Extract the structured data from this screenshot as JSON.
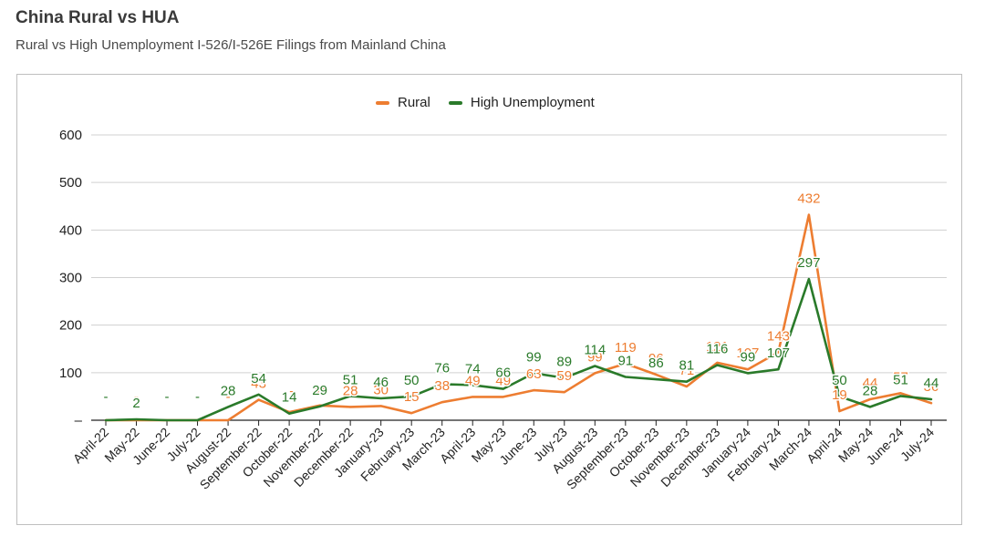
{
  "header": {
    "title": "China Rural vs HUA",
    "subtitle": "Rural vs High Unemployment I-526/I-526E Filings from Mainland China"
  },
  "chart_data": {
    "type": "line",
    "categories": [
      "April-22",
      "May-22",
      "June-22",
      "July-22",
      "August-22",
      "September-22",
      "October-22",
      "November-22",
      "December-22",
      "January-23",
      "February-23",
      "March-23",
      "April-23",
      "May-23",
      "June-23",
      "July-23",
      "August-23",
      "September-23",
      "October-23",
      "November-23",
      "December-23",
      "January-24",
      "February-24",
      "March-24",
      "April-24",
      "May-24",
      "June-24",
      "July-24"
    ],
    "series": [
      {
        "name": "Rural",
        "color": "#ED7D31",
        "values": [
          0,
          0,
          0,
          0,
          0,
          43,
          17,
          31,
          28,
          30,
          15,
          38,
          49,
          49,
          63,
          59,
          99,
          119,
          96,
          71,
          121,
          107,
          143,
          432,
          19,
          44,
          57,
          36
        ],
        "labels": [
          "-",
          "-",
          "-",
          "-",
          "-",
          "43",
          "17",
          "31",
          "28",
          "30",
          "15",
          "38",
          "49",
          "49",
          "63",
          "59",
          "99",
          "119",
          "96",
          "71",
          "121",
          "107",
          "143",
          "432",
          "19",
          "44",
          "57",
          "36"
        ]
      },
      {
        "name": "High Unemployment",
        "color": "#2A7A2A",
        "values": [
          0,
          2,
          0,
          0,
          28,
          54,
          14,
          29,
          51,
          46,
          50,
          76,
          74,
          66,
          99,
          89,
          114,
          91,
          86,
          81,
          116,
          99,
          107,
          297,
          50,
          28,
          51,
          44
        ],
        "labels": [
          "-",
          "2",
          "-",
          "-",
          "28",
          "54",
          "14",
          "29",
          "51",
          "46",
          "50",
          "76",
          "74",
          "66",
          "99",
          "89",
          "114",
          "91",
          "86",
          "81",
          "116",
          "99",
          "107",
          "297",
          "50",
          "28",
          "51",
          "44"
        ]
      }
    ],
    "ylim": [
      0,
      600
    ],
    "yticks": [
      "600",
      "500",
      "400",
      "300",
      "200",
      "100",
      "–"
    ],
    "ytick_values": [
      600,
      500,
      400,
      300,
      200,
      100,
      0
    ],
    "grid": true,
    "legend": "top-center",
    "xlabel": "",
    "ylabel": ""
  }
}
